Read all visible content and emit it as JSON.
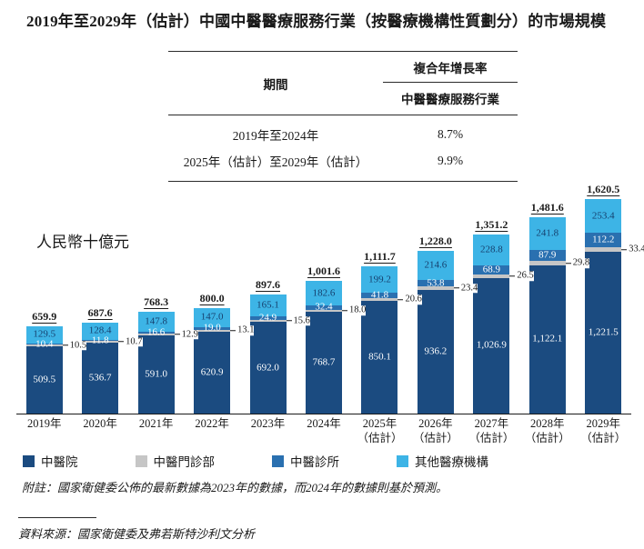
{
  "page": {
    "title": "2019年至2029年（估計）中國中醫醫療服務行業（按醫療機構性質劃分）的市場規模",
    "unit_label": "人民幣十億元",
    "note": "附註：國家衛健委公佈的最新數據為2023年的數據，而2024年的數據則基於預測。",
    "source": "資料來源：國家衛健委及弗若斯特沙利文分析"
  },
  "cagr_table": {
    "period_header": "期間",
    "cagr_header": "複合年增長率",
    "cagr_subheader": "中醫醫療服務行業",
    "rows": [
      {
        "period": "2019年至2024年",
        "cagr": "8.7%"
      },
      {
        "period": "2025年（估計）至2029年（估計）",
        "cagr": "9.9%"
      }
    ]
  },
  "chart_data": {
    "type": "bar",
    "stacked": true,
    "title": "2019年至2029年（估計）中國中醫醫療服務行業（按醫療機構性質劃分）的市場規模",
    "ylabel": "人民幣十億元",
    "ylim": [
      0,
      1700
    ],
    "legend_position": "bottom",
    "categories": [
      "2019年",
      "2020年",
      "2021年",
      "2022年",
      "2023年",
      "2024年",
      "2025年",
      "2026年",
      "2027年",
      "2028年",
      "2029年"
    ],
    "category_notes": [
      "",
      "",
      "",
      "",
      "",
      "",
      "（估計）",
      "（估計）",
      "（估計）",
      "（估計）",
      "（估計）"
    ],
    "series": [
      {
        "key": "tcm-hospital",
        "name": "中醫院",
        "color": "#1b4b80",
        "label_color": "#ffffff",
        "label_mode": "inside",
        "values": [
          509.5,
          536.7,
          591.0,
          620.9,
          692.0,
          768.7,
          850.1,
          936.2,
          1026.9,
          1122.1,
          1221.5
        ],
        "labels": [
          "509.5",
          "536.7",
          "591.0",
          "620.9",
          "692.0",
          "768.7",
          "850.1",
          "936.2",
          "1,026.9",
          "1,122.1",
          "1,221.5"
        ]
      },
      {
        "key": "tcm-outpatient-dept",
        "name": "中醫門診部",
        "color": "#c6c6c6",
        "label_color": "#1a1a1a",
        "label_mode": "callout",
        "values": [
          10.5,
          10.7,
          12.9,
          13.1,
          15.6,
          18.0,
          20.6,
          23.4,
          26.5,
          29.8,
          33.4
        ],
        "labels": [
          "10.5",
          "10.7",
          "12.9",
          "13.1",
          "15.6",
          "18.0",
          "20.6",
          "23.4",
          "26.5",
          "29.8",
          "33.4"
        ]
      },
      {
        "key": "tcm-clinic",
        "name": "中醫診所",
        "color": "#2a70b0",
        "label_color": "#ffffff",
        "label_mode": "inside",
        "values": [
          10.4,
          11.8,
          16.6,
          19.0,
          24.9,
          32.4,
          41.8,
          53.8,
          68.9,
          87.9,
          112.2
        ],
        "labels": [
          "10.4",
          "11.8",
          "16.6",
          "19.0",
          "24.9",
          "32.4",
          "41.8",
          "53.8",
          "68.9",
          "87.9",
          "112.2"
        ]
      },
      {
        "key": "other-medical-institutions",
        "name": "其他醫療機構",
        "color": "#3db4e6",
        "label_color": "#16406e",
        "label_mode": "inside",
        "values": [
          129.5,
          128.4,
          147.8,
          147.0,
          165.1,
          182.6,
          199.2,
          214.6,
          228.8,
          241.8,
          253.4
        ],
        "labels": [
          "129.5",
          "128.4",
          "147.8",
          "147.0",
          "165.1",
          "182.6",
          "199.2",
          "214.6",
          "228.8",
          "241.8",
          "253.4"
        ]
      }
    ],
    "totals": [
      659.9,
      687.6,
      768.3,
      800.0,
      897.6,
      1001.6,
      1111.7,
      1228.0,
      1351.2,
      1481.6,
      1620.5
    ],
    "totals_display": [
      "659.9",
      "687.6",
      "768.3",
      "800.0",
      "897.6",
      "1,001.6",
      "1,111.7",
      "1,228.0",
      "1,351.2",
      "1,481.6",
      "1,620.5"
    ]
  }
}
